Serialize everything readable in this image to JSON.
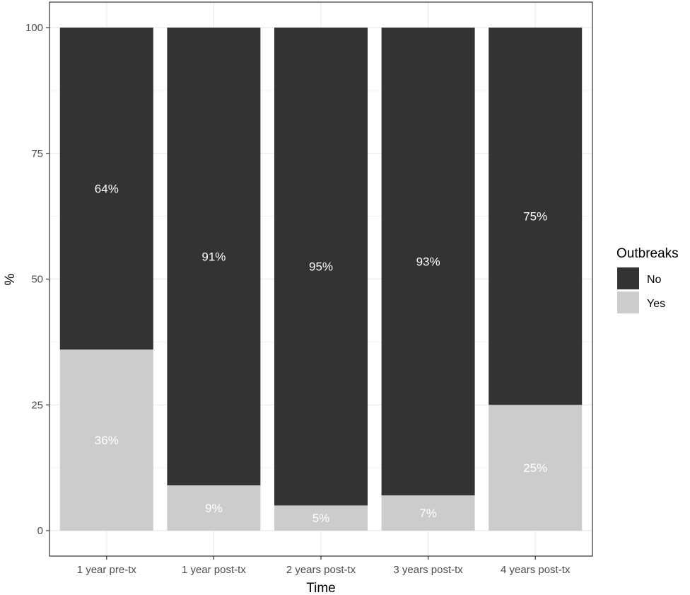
{
  "chart_data": {
    "type": "bar",
    "stacked": true,
    "categories": [
      "1 year pre-tx",
      "1 year post-tx",
      "2 years post-tx",
      "3 years post-tx",
      "4 years post-tx"
    ],
    "series": [
      {
        "name": "Yes",
        "values": [
          36,
          9,
          5,
          7,
          25
        ],
        "color": "#cccccc"
      },
      {
        "name": "No",
        "values": [
          64,
          91,
          95,
          93,
          75
        ],
        "color": "#333333"
      }
    ],
    "data_labels": {
      "Yes": [
        "36%",
        "9%",
        "5%",
        "7%",
        "25%"
      ],
      "No": [
        "64%",
        "91%",
        "95%",
        "93%",
        "75%"
      ]
    },
    "xlabel": "Time",
    "ylabel": "%",
    "ylim": [
      0,
      100
    ],
    "yticks": [
      0,
      25,
      50,
      75,
      100
    ],
    "grid": true,
    "legend": {
      "title": "Outbreaks",
      "position": "right",
      "entries": [
        "No",
        "Yes"
      ]
    }
  }
}
